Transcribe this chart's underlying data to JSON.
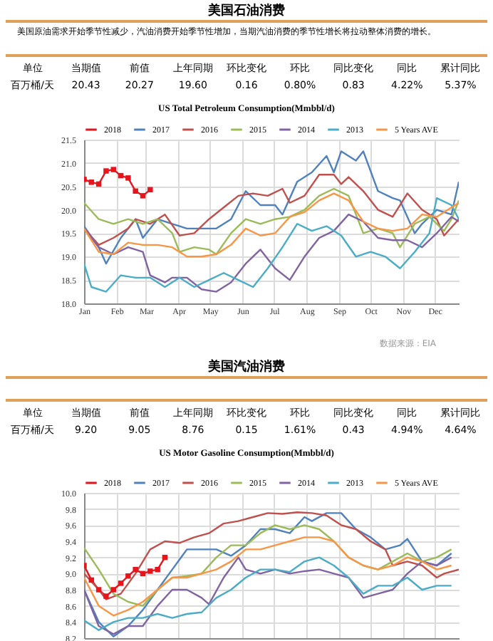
{
  "chart_data": [
    {
      "type": "other",
      "title": "美国石油消费",
      "subtitle": "美国原油需求开始季节性减少，汽油消费开始季节性增加，当期汽油消费的季节性增长将拉动整体消费的增长。",
      "annotations": [
        "单位",
        "当期值",
        "前值",
        "上年同期",
        "环比变化",
        "环比",
        "同比变化",
        "同比",
        "累计同比",
        "百万桶/天",
        "20.43",
        "20.27",
        "19.60",
        "0.16",
        "0.80%",
        "0.83",
        "4.22%",
        "5.37%"
      ]
    },
    {
      "type": "line",
      "title": "US Total Petroleum Consumption(Mmbbl/d)",
      "legend": "top",
      "grid": true,
      "annotations": [
        "数据来源：EIA"
      ],
      "xlim": [
        "--01-01",
        "--12-24"
      ],
      "xticks": [
        {
          "value": "--01-01",
          "label": "Jan"
        },
        {
          "value": "--02-01",
          "label": "Feb"
        },
        {
          "value": "--03-01",
          "label": "Mar"
        },
        {
          "value": "--04-01",
          "label": "Apr"
        },
        {
          "value": "--05-01",
          "label": "May"
        },
        {
          "value": "--06-01",
          "label": "Jun"
        },
        {
          "value": "--07-01",
          "label": "Jul"
        },
        {
          "value": "--08-01",
          "label": "Aug"
        },
        {
          "value": "--09-01",
          "label": "Sep"
        },
        {
          "value": "--10-01",
          "label": "Oct"
        },
        {
          "value": "--11-01",
          "label": "Nov"
        },
        {
          "value": "--12-01",
          "label": "Dec"
        }
      ],
      "ylim": [
        18.0,
        21.5
      ],
      "yticks": [
        {
          "value": 18,
          "label": "18.0"
        },
        18.5,
        {
          "value": 19,
          "label": "19.0"
        },
        19.5,
        {
          "value": 20,
          "label": "20.0"
        },
        20.5,
        {
          "value": 21,
          "label": "21.0"
        },
        21.5
      ],
      "series": [
        {
          "name": "2018",
          "color": "#e8141c",
          "marker": "square",
          "x": [
            "--01-01",
            "--01-08",
            "--01-15",
            "--01-22",
            "--01-29",
            "--02-05",
            "--02-12",
            "--02-19",
            "--02-26",
            "--03-05"
          ],
          "values": [
            20.65,
            20.59,
            20.55,
            20.83,
            20.86,
            20.73,
            20.68,
            20.4,
            20.3,
            20.43
          ]
        },
        {
          "name": "2017",
          "color": "#4f81bd",
          "x": [
            "--01-01",
            "--01-15",
            "--01-22",
            "--02-05",
            "--02-19",
            "--02-26",
            "--03-12",
            "--03-26",
            "--04-09",
            "--04-23",
            "--05-07",
            "--05-21",
            "--06-04",
            "--06-18",
            "--07-02",
            "--07-09",
            "--07-23",
            "--08-06",
            "--08-20",
            "--08-27",
            "--09-03",
            "--09-17",
            "--09-24",
            "--10-08",
            "--10-22",
            "--10-29",
            "--11-12",
            "--11-19",
            "--12-03",
            "--12-17",
            "--12-24"
          ],
          "values": [
            19.65,
            19.2,
            18.85,
            19.4,
            19.8,
            19.4,
            19.8,
            19.7,
            19.6,
            19.6,
            19.6,
            19.8,
            20.4,
            20.1,
            20.1,
            19.9,
            20.6,
            20.8,
            21.15,
            20.8,
            21.25,
            21.05,
            21.25,
            20.4,
            20.25,
            20.2,
            19.5,
            19.7,
            20.0,
            19.9,
            20.6
          ]
        },
        {
          "name": "2016",
          "color": "#c0504d",
          "x": [
            "--01-01",
            "--01-15",
            "--01-29",
            "--02-12",
            "--02-19",
            "--03-05",
            "--03-19",
            "--04-02",
            "--04-16",
            "--04-30",
            "--05-14",
            "--05-28",
            "--06-11",
            "--06-25",
            "--07-09",
            "--07-16",
            "--07-30",
            "--08-13",
            "--08-27",
            "--09-03",
            "--09-10",
            "--09-24",
            "--10-08",
            "--10-22",
            "--11-05",
            "--11-19",
            "--12-03",
            "--12-10",
            "--12-24"
          ],
          "values": [
            19.6,
            19.25,
            19.4,
            19.6,
            19.8,
            19.7,
            19.9,
            19.45,
            19.5,
            19.8,
            20.05,
            20.3,
            20.35,
            20.3,
            20.45,
            20.15,
            20.3,
            20.75,
            20.75,
            20.55,
            20.7,
            20.4,
            20.0,
            19.85,
            20.35,
            20.0,
            19.8,
            19.45,
            19.8
          ]
        },
        {
          "name": "2015",
          "color": "#9bbb59",
          "x": [
            "--01-01",
            "--01-15",
            "--01-29",
            "--02-12",
            "--02-26",
            "--03-12",
            "--03-26",
            "--04-02",
            "--04-16",
            "--04-30",
            "--05-07",
            "--05-21",
            "--06-04",
            "--06-18",
            "--07-02",
            "--07-16",
            "--07-30",
            "--08-13",
            "--08-27",
            "--09-10",
            "--09-24",
            "--10-08",
            "--10-22",
            "--10-29",
            "--11-12",
            "--11-26",
            "--12-10",
            "--12-17",
            "--12-24"
          ],
          "values": [
            20.15,
            19.8,
            19.7,
            19.8,
            19.7,
            19.8,
            19.5,
            19.1,
            19.2,
            19.15,
            19.05,
            19.5,
            19.8,
            19.7,
            19.8,
            19.85,
            20.0,
            20.3,
            20.45,
            20.3,
            19.5,
            19.6,
            19.5,
            19.2,
            19.7,
            19.85,
            19.55,
            19.8,
            20.2
          ]
        },
        {
          "name": "2014",
          "color": "#8064a2",
          "x": [
            "--01-01",
            "--01-15",
            "--01-29",
            "--02-12",
            "--02-26",
            "--03-05",
            "--03-19",
            "--03-26",
            "--04-09",
            "--04-23",
            "--05-07",
            "--05-21",
            "--06-04",
            "--06-18",
            "--07-02",
            "--07-16",
            "--07-30",
            "--08-13",
            "--08-27",
            "--09-10",
            "--09-24",
            "--10-08",
            "--10-22",
            "--11-05",
            "--11-19",
            "--12-03",
            "--12-17",
            "--12-24"
          ],
          "values": [
            19.6,
            19.2,
            19.05,
            19.2,
            19.1,
            18.6,
            18.45,
            18.55,
            18.55,
            18.3,
            18.25,
            18.45,
            18.85,
            19.15,
            18.75,
            18.5,
            19.0,
            19.4,
            19.55,
            19.9,
            19.75,
            19.4,
            19.35,
            19.35,
            19.2,
            19.5,
            19.85,
            19.75
          ]
        },
        {
          "name": "2013",
          "color": "#4bacc6",
          "x": [
            "--01-01",
            "--01-08",
            "--01-22",
            "--02-05",
            "--02-19",
            "--03-05",
            "--03-19",
            "--04-02",
            "--04-16",
            "--04-30",
            "--05-14",
            "--05-28",
            "--06-11",
            "--06-25",
            "--07-09",
            "--07-23",
            "--08-06",
            "--08-20",
            "--09-03",
            "--09-17",
            "--10-01",
            "--10-15",
            "--10-29",
            "--11-12",
            "--11-26",
            "--12-03",
            "--12-17",
            "--12-24"
          ],
          "values": [
            18.85,
            18.35,
            18.25,
            18.6,
            18.55,
            18.55,
            18.35,
            18.55,
            18.35,
            18.5,
            18.65,
            18.5,
            18.35,
            18.75,
            19.2,
            19.7,
            19.55,
            19.65,
            19.45,
            19.0,
            19.1,
            19.0,
            18.75,
            19.1,
            19.5,
            20.25,
            20.1,
            19.8
          ]
        },
        {
          "name": "5 Years AVE",
          "color": "#f79646",
          "x": [
            "--01-01",
            "--01-15",
            "--01-29",
            "--02-12",
            "--02-26",
            "--03-12",
            "--03-26",
            "--04-09",
            "--04-23",
            "--05-07",
            "--05-21",
            "--06-04",
            "--06-18",
            "--07-02",
            "--07-16",
            "--07-30",
            "--08-13",
            "--08-27",
            "--09-10",
            "--09-24",
            "--10-08",
            "--10-22",
            "--11-05",
            "--11-19",
            "--12-03",
            "--12-17",
            "--12-24"
          ],
          "values": [
            19.6,
            19.1,
            19.05,
            19.3,
            19.25,
            19.25,
            19.2,
            19.0,
            19.0,
            19.05,
            19.25,
            19.6,
            19.45,
            19.5,
            19.85,
            19.95,
            20.2,
            20.35,
            20.2,
            19.75,
            19.6,
            19.55,
            19.6,
            19.9,
            19.85,
            20.05,
            20.15
          ]
        }
      ]
    },
    {
      "type": "other",
      "title": "美国汽油消费",
      "annotations": [
        "单位",
        "当期值",
        "前值",
        "上年同期",
        "环比变化",
        "环比",
        "同比变化",
        "同比",
        "累计同比",
        "百万桶/天",
        "9.20",
        "9.05",
        "8.76",
        "0.15",
        "1.61%",
        "0.43",
        "4.94%",
        "4.64%"
      ]
    },
    {
      "type": "line",
      "title": "US Motor Gasoline Consumption(Mmbbl/d)",
      "legend": "top",
      "grid": true,
      "tick_labels": "y",
      "xlim": [
        "--01-01",
        "--12-24"
      ],
      "xticks": [
        {
          "value": "--01-01",
          "label": null
        },
        {
          "value": "--02-01",
          "label": null
        },
        {
          "value": "--03-01",
          "label": null
        },
        {
          "value": "--04-01",
          "label": null
        },
        {
          "value": "--05-01",
          "label": null
        },
        {
          "value": "--06-01",
          "label": null
        },
        {
          "value": "--07-01",
          "label": null
        },
        {
          "value": "--08-01",
          "label": null
        },
        {
          "value": "--09-01",
          "label": null
        },
        {
          "value": "--10-01",
          "label": null
        },
        {
          "value": "--11-01",
          "label": null
        },
        {
          "value": "--12-01",
          "label": null
        }
      ],
      "ylim": [
        8.2,
        10.0
      ],
      "yticks": [
        8.2,
        8.4,
        8.6,
        8.8,
        {
          "value": 9,
          "label": "9.0"
        },
        9.2,
        9.4,
        9.6,
        9.8,
        {
          "value": 10,
          "label": "10.0"
        }
      ],
      "series": [
        {
          "name": "2018",
          "color": "#e8141c",
          "marker": "square",
          "x": [
            "--01-01",
            "--01-08",
            "--01-15",
            "--01-22",
            "--01-29",
            "--02-05",
            "--02-12",
            "--02-19",
            "--02-26",
            "--03-05",
            "--03-12",
            "--03-19"
          ],
          "values": [
            9.1,
            8.92,
            8.8,
            8.72,
            8.8,
            8.88,
            8.97,
            9.05,
            9.0,
            9.03,
            9.05,
            9.2
          ]
        },
        {
          "name": "2017",
          "color": "#4f81bd",
          "x": [
            "--01-01",
            "--01-15",
            "--01-29",
            "--02-12",
            "--02-26",
            "--03-12",
            "--03-26",
            "--04-09",
            "--04-23",
            "--05-07",
            "--05-21",
            "--06-04",
            "--06-18",
            "--07-02",
            "--07-16",
            "--07-30",
            "--08-06",
            "--08-20",
            "--09-03",
            "--09-17",
            "--10-01",
            "--10-15",
            "--10-29",
            "--11-05",
            "--11-19",
            "--12-03",
            "--12-17"
          ],
          "values": [
            8.8,
            8.4,
            8.22,
            8.35,
            8.55,
            8.8,
            9.05,
            9.3,
            9.3,
            9.3,
            9.22,
            9.35,
            9.55,
            9.55,
            9.5,
            9.7,
            9.65,
            9.75,
            9.75,
            9.55,
            9.45,
            9.3,
            9.35,
            9.43,
            9.15,
            9.1,
            9.25
          ]
        },
        {
          "name": "2016",
          "color": "#c0504d",
          "x": [
            "--01-01",
            "--01-15",
            "--01-22",
            "--02-05",
            "--02-19",
            "--03-05",
            "--03-19",
            "--04-02",
            "--04-16",
            "--04-30",
            "--05-14",
            "--05-28",
            "--06-11",
            "--06-25",
            "--07-09",
            "--07-23",
            "--08-06",
            "--08-20",
            "--09-03",
            "--09-17",
            "--10-01",
            "--10-15",
            "--10-22",
            "--11-05",
            "--11-19",
            "--12-03",
            "--12-10",
            "--12-24"
          ],
          "values": [
            9.0,
            8.8,
            8.68,
            8.75,
            9.0,
            9.3,
            9.4,
            9.38,
            9.45,
            9.5,
            9.62,
            9.65,
            9.7,
            9.75,
            9.74,
            9.76,
            9.75,
            9.72,
            9.6,
            9.55,
            9.4,
            9.3,
            9.1,
            9.15,
            9.1,
            8.95,
            9.0,
            9.05
          ]
        },
        {
          "name": "2015",
          "color": "#9bbb59",
          "x": [
            "--01-01",
            "--01-15",
            "--01-29",
            "--02-12",
            "--02-26",
            "--03-12",
            "--03-26",
            "--04-09",
            "--04-23",
            "--05-07",
            "--05-21",
            "--06-04",
            "--06-18",
            "--07-02",
            "--07-16",
            "--07-30",
            "--08-13",
            "--08-27",
            "--09-10",
            "--09-24",
            "--10-08",
            "--10-22",
            "--11-05",
            "--11-19",
            "--12-03",
            "--12-17"
          ],
          "values": [
            9.32,
            9.05,
            8.75,
            8.65,
            8.6,
            8.8,
            8.95,
            8.97,
            9.0,
            9.2,
            9.35,
            9.35,
            9.5,
            9.6,
            9.55,
            9.6,
            9.55,
            9.4,
            9.2,
            9.1,
            9.05,
            9.15,
            9.25,
            9.15,
            9.2,
            9.3
          ]
        },
        {
          "name": "2014",
          "color": "#8064a2",
          "x": [
            "--01-01",
            "--01-15",
            "--01-29",
            "--02-12",
            "--02-26",
            "--03-12",
            "--03-26",
            "--04-09",
            "--04-23",
            "--04-30",
            "--05-14",
            "--05-28",
            "--06-04",
            "--06-18",
            "--07-02",
            "--07-16",
            "--07-30",
            "--08-13",
            "--08-27",
            "--09-10",
            "--09-24",
            "--10-08",
            "--10-22",
            "--11-05",
            "--11-19",
            "--12-03",
            "--12-17"
          ],
          "values": [
            8.8,
            8.35,
            8.25,
            8.35,
            8.35,
            8.6,
            8.8,
            8.8,
            8.7,
            8.62,
            8.95,
            9.2,
            9.05,
            9.0,
            9.05,
            9.0,
            9.03,
            9.05,
            9.0,
            8.95,
            8.7,
            8.75,
            8.8,
            9.0,
            9.15,
            9.1,
            9.2
          ]
        },
        {
          "name": "2013",
          "color": "#4bacc6",
          "x": [
            "--01-01",
            "--01-15",
            "--01-29",
            "--02-12",
            "--02-26",
            "--03-12",
            "--03-26",
            "--04-09",
            "--04-23",
            "--05-07",
            "--05-21",
            "--06-04",
            "--06-18",
            "--07-02",
            "--07-16",
            "--07-30",
            "--08-13",
            "--08-27",
            "--09-10",
            "--09-24",
            "--10-08",
            "--10-22",
            "--11-05",
            "--11-19",
            "--12-03",
            "--12-17"
          ],
          "values": [
            8.42,
            8.3,
            8.4,
            8.45,
            8.45,
            8.5,
            8.45,
            8.5,
            8.52,
            8.7,
            8.8,
            8.95,
            9.05,
            9.05,
            9.02,
            9.15,
            9.2,
            9.1,
            8.95,
            8.75,
            8.85,
            8.85,
            8.95,
            8.8,
            8.85,
            8.85
          ]
        },
        {
          "name": "5 Years AVE",
          "color": "#f79646",
          "x": [
            "--01-01",
            "--01-15",
            "--01-29",
            "--02-12",
            "--02-26",
            "--03-12",
            "--03-26",
            "--04-09",
            "--04-23",
            "--05-07",
            "--05-21",
            "--06-04",
            "--06-18",
            "--07-02",
            "--07-16",
            "--07-30",
            "--08-13",
            "--08-27",
            "--09-10",
            "--09-24",
            "--10-08",
            "--10-22",
            "--11-05",
            "--11-19",
            "--12-03",
            "--12-17"
          ],
          "values": [
            8.95,
            8.6,
            8.48,
            8.55,
            8.65,
            8.8,
            8.95,
            8.95,
            9.0,
            9.05,
            9.15,
            9.3,
            9.3,
            9.35,
            9.4,
            9.45,
            9.45,
            9.4,
            9.2,
            9.1,
            9.05,
            9.1,
            9.2,
            9.15,
            9.05,
            9.1
          ]
        }
      ]
    }
  ]
}
